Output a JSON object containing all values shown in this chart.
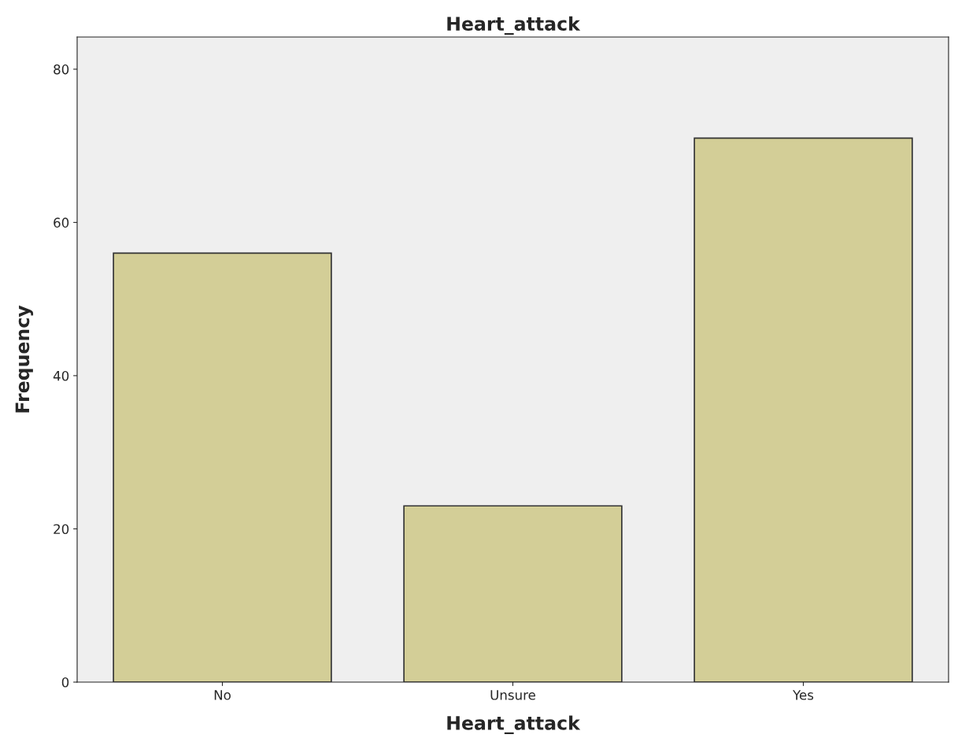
{
  "chart_data": {
    "type": "bar",
    "title": "Heart_attack",
    "xlabel": "Heart_attack",
    "ylabel": "Frequency",
    "categories": [
      "No",
      "Unsure",
      "Yes"
    ],
    "values": [
      56,
      23,
      71
    ],
    "color": "#d3ce97",
    "ylim": [
      0,
      84.2
    ],
    "yticks": [
      0,
      20,
      40,
      60,
      80
    ],
    "grid": false,
    "legend": false
  }
}
